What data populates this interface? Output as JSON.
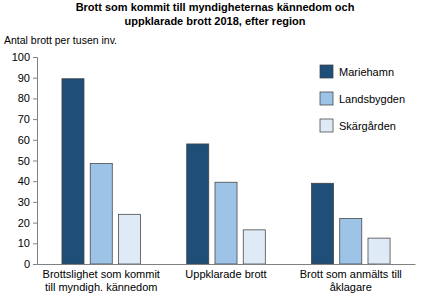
{
  "chart_data": {
    "type": "bar",
    "title": "Brott som kommit till myndigheternas kännedom och\nuppklarade brott 2018, efter region",
    "y_label": "Antal brott per tusen inv.",
    "categories": [
      "Brottslighet som kommit\ntill myndigh. kännedom",
      "Uppklarade brott",
      "Brott som anmälts till\nåklagare"
    ],
    "series": [
      {
        "name": "Mariehamn",
        "color": "#1f4e79",
        "values": [
          89.5,
          58,
          39
        ]
      },
      {
        "name": "Landsbygden",
        "color": "#9dc3e6",
        "values": [
          48.5,
          39.5,
          22
        ]
      },
      {
        "name": "Skärgården",
        "color": "#deebf7",
        "values": [
          24,
          16.5,
          12.5
        ]
      }
    ],
    "ylim": [
      0,
      100
    ],
    "yticks": [
      0,
      10,
      20,
      30,
      40,
      50,
      60,
      70,
      80,
      90,
      100
    ],
    "grid": false,
    "legend": "top-right"
  }
}
